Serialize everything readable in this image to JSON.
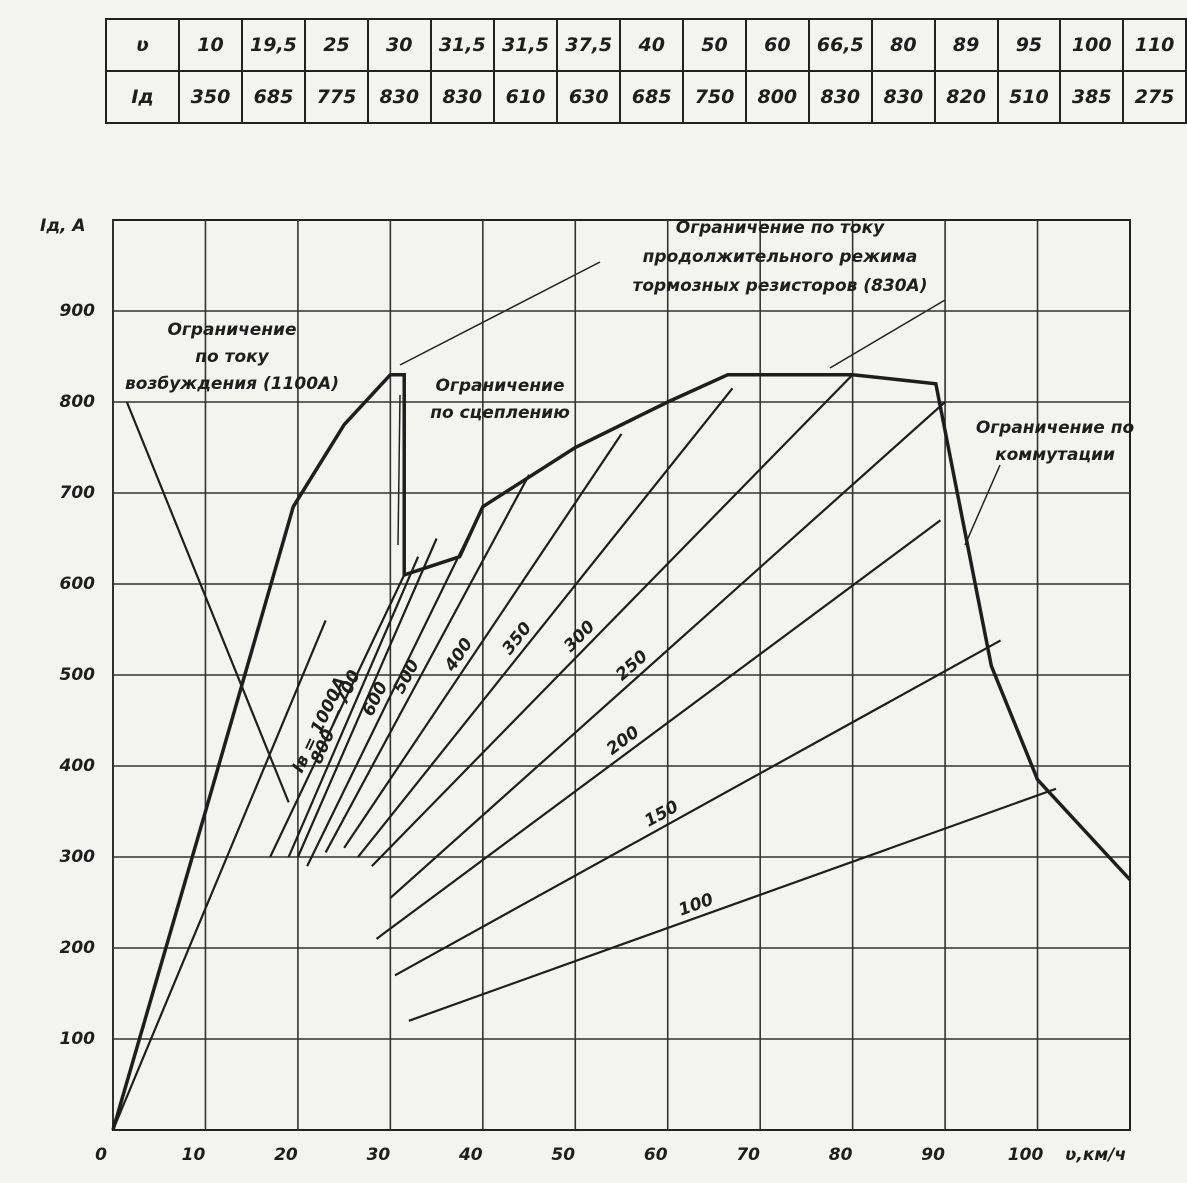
{
  "table": {
    "rows": [
      [
        "ʋ",
        "10",
        "19,5",
        "25",
        "30",
        "31,5",
        "31,5",
        "37,5",
        "40",
        "50",
        "60",
        "66,5",
        "80",
        "89",
        "95",
        "100",
        "110"
      ],
      [
        "Iд",
        "350",
        "685",
        "775",
        "830",
        "830",
        "610",
        "630",
        "685",
        "750",
        "800",
        "830",
        "830",
        "820",
        "510",
        "385",
        "275"
      ]
    ]
  },
  "chart_data": {
    "type": "line",
    "y_label": "Iд, A",
    "x_label": "ʋ,км/ч",
    "xlim": [
      0,
      110
    ],
    "ylim": [
      0,
      1000
    ],
    "xticks": [
      0,
      10,
      20,
      30,
      40,
      50,
      60,
      70,
      80,
      90,
      100
    ],
    "yticks": [
      100,
      200,
      300,
      400,
      500,
      600,
      700,
      800,
      900
    ],
    "grid": true,
    "color": "#1e1e1e",
    "annotations": [
      [
        "Ограничение по току",
        "продолжительного режима",
        "тормозных резисторов (830А)"
      ],
      [
        "Ограничение",
        "по току",
        "возбуждения (1100А)"
      ],
      [
        "Ограничение",
        "по сцеплению"
      ],
      [
        "Ограничение по",
        "коммутации"
      ]
    ],
    "series": [
      {
        "x": [
          0,
          10,
          19.5,
          25,
          30,
          31.5,
          31.5,
          37.5,
          40,
          50,
          60,
          66.5,
          80,
          89,
          95,
          100,
          110
        ],
        "values": [
          0,
          350,
          685,
          775,
          830,
          830,
          610,
          630,
          685,
          750,
          800,
          830,
          830,
          820,
          510,
          385,
          275
        ]
      },
      {
        "x": [
          1.5,
          19
        ],
        "values": [
          800,
          360
        ]
      },
      {
        "x": [
          0,
          23
        ],
        "values": [
          0,
          560
        ]
      },
      {
        "name": "100",
        "x": [
          32,
          102
        ],
        "values": [
          120,
          375
        ]
      },
      {
        "name": "150",
        "x": [
          30.5,
          96
        ],
        "values": [
          170,
          538
        ]
      },
      {
        "name": "200",
        "x": [
          28.5,
          89.5
        ],
        "values": [
          210,
          670
        ]
      },
      {
        "name": "250",
        "x": [
          30,
          90
        ],
        "values": [
          255,
          800
        ]
      },
      {
        "name": "300",
        "x": [
          28,
          80
        ],
        "values": [
          290,
          830
        ]
      },
      {
        "name": "350",
        "x": [
          26.5,
          67
        ],
        "values": [
          300,
          815
        ]
      },
      {
        "name": "400",
        "x": [
          25,
          55
        ],
        "values": [
          310,
          765
        ]
      },
      {
        "name": "500",
        "x": [
          23,
          45
        ],
        "values": [
          305,
          720
        ]
      },
      {
        "name": "600",
        "x": [
          21,
          40
        ],
        "values": [
          290,
          685
        ]
      },
      {
        "x": [
          20,
          35
        ],
        "values": [
          300,
          650
        ]
      },
      {
        "name": "800 — 700",
        "x": [
          19,
          33
        ],
        "values": [
          300,
          630
        ]
      },
      {
        "name": "Iв = 1000А",
        "x": [
          17,
          31.5
        ],
        "values": [
          300,
          610
        ]
      }
    ]
  }
}
